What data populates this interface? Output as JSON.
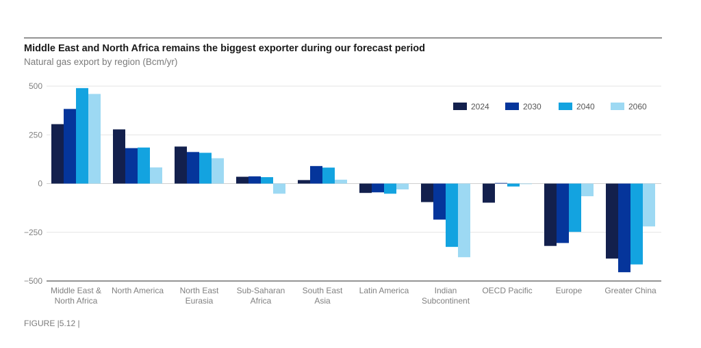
{
  "header": {
    "title": "Middle East and North Africa remains the biggest exporter during our forecast period",
    "subtitle": "Natural gas export by region (Bcm/yr)"
  },
  "footer": {
    "figure_label": "FIGURE |5.12 |"
  },
  "colors": {
    "2024": "#13204d",
    "2030": "#05359b",
    "2040": "#13a3e0",
    "2060": "#9dd9f3"
  },
  "chart_data": {
    "type": "bar",
    "title": "Middle East and North Africa remains the biggest exporter during our forecast period",
    "subtitle": "Natural gas export by region (Bcm/yr)",
    "xlabel": "",
    "ylabel": "",
    "ylim": [
      -500,
      500
    ],
    "yticks": [
      500,
      250,
      0,
      -250,
      -500
    ],
    "ytick_labels": [
      "500",
      "250",
      "0",
      "−250",
      "−500"
    ],
    "grid": true,
    "legend_position": "top-right",
    "categories": [
      [
        "Middle East &",
        "North Africa"
      ],
      [
        "North America"
      ],
      [
        "North East",
        "Eurasia"
      ],
      [
        "Sub-Saharan",
        "Africa"
      ],
      [
        "South East",
        "Asia"
      ],
      [
        "Latin America"
      ],
      [
        "Indian",
        "Subcontinent"
      ],
      [
        "OECD Pacific"
      ],
      [
        "Europe"
      ],
      [
        "Greater China"
      ]
    ],
    "series": [
      {
        "name": "2024",
        "values": [
          305,
          278,
          190,
          35,
          18,
          -48,
          -95,
          -98,
          -320,
          -385
        ]
      },
      {
        "name": "2030",
        "values": [
          383,
          182,
          162,
          37,
          90,
          -45,
          -185,
          3,
          -305,
          -455
        ]
      },
      {
        "name": "2040",
        "values": [
          490,
          185,
          158,
          33,
          82,
          -52,
          -325,
          -15,
          -248,
          -415
        ]
      },
      {
        "name": "2060",
        "values": [
          460,
          83,
          130,
          -52,
          20,
          -30,
          -378,
          -3,
          -65,
          -220
        ]
      }
    ]
  }
}
